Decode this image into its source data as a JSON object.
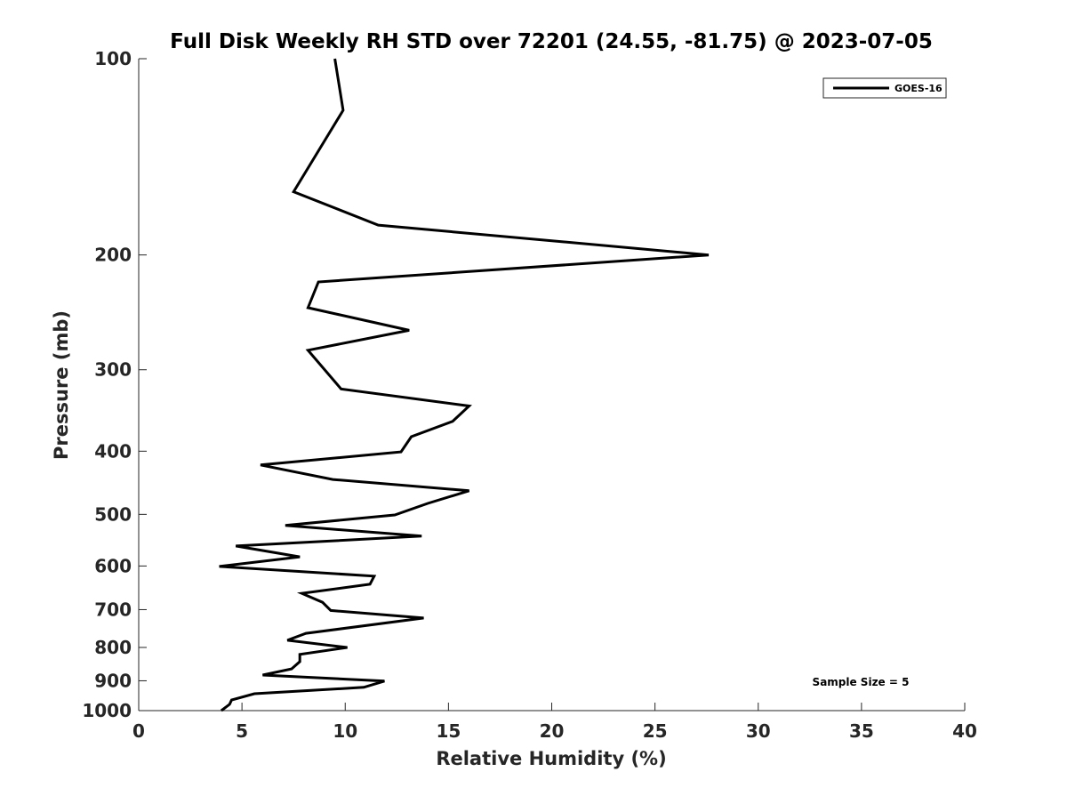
{
  "chart_data": {
    "type": "line",
    "title": "Full Disk Weekly RH STD over 72201 (24.55, -81.75) @ 2023-07-05",
    "xlabel": "Relative Humidity (%)",
    "ylabel": "Pressure (mb)",
    "xlim": [
      0,
      40
    ],
    "ylim": [
      100,
      1000
    ],
    "yscale": "log",
    "y_reversed": true,
    "grid": false,
    "xticks": [
      0,
      5,
      10,
      15,
      20,
      25,
      30,
      35,
      40
    ],
    "yticks": [
      100,
      200,
      300,
      400,
      500,
      600,
      700,
      800,
      900,
      1000
    ],
    "legend": {
      "position": "top-right",
      "entries": [
        "GOES-16"
      ]
    },
    "annotation": "Sample Size = 5",
    "series": [
      {
        "name": "GOES-16",
        "color": "#000000",
        "points": [
          [
            9.5,
            100
          ],
          [
            9.9,
            120
          ],
          [
            7.5,
            160
          ],
          [
            11.6,
            180
          ],
          [
            27.6,
            200
          ],
          [
            8.7,
            220
          ],
          [
            8.2,
            241
          ],
          [
            13.1,
            261
          ],
          [
            8.2,
            280
          ],
          [
            9.8,
            321
          ],
          [
            16.0,
            341
          ],
          [
            15.2,
            360
          ],
          [
            13.2,
            380
          ],
          [
            12.7,
            401
          ],
          [
            5.9,
            420
          ],
          [
            9.4,
            442
          ],
          [
            16.0,
            460
          ],
          [
            14.0,
            481
          ],
          [
            12.4,
            501
          ],
          [
            7.1,
            520
          ],
          [
            13.7,
            540
          ],
          [
            4.7,
            559
          ],
          [
            7.8,
            581
          ],
          [
            3.9,
            601
          ],
          [
            11.4,
            622
          ],
          [
            11.2,
            640
          ],
          [
            7.9,
            661
          ],
          [
            8.9,
            682
          ],
          [
            9.3,
            702
          ],
          [
            13.8,
            721
          ],
          [
            8.1,
            761
          ],
          [
            7.2,
            780
          ],
          [
            10.1,
            800
          ],
          [
            7.8,
            820
          ],
          [
            7.8,
            841
          ],
          [
            7.4,
            863
          ],
          [
            6.0,
            882
          ],
          [
            11.9,
            901
          ],
          [
            10.9,
            921
          ],
          [
            5.6,
            942
          ],
          [
            4.5,
            963
          ],
          [
            4.4,
            978
          ],
          [
            4.0,
            1000
          ]
        ]
      }
    ]
  }
}
